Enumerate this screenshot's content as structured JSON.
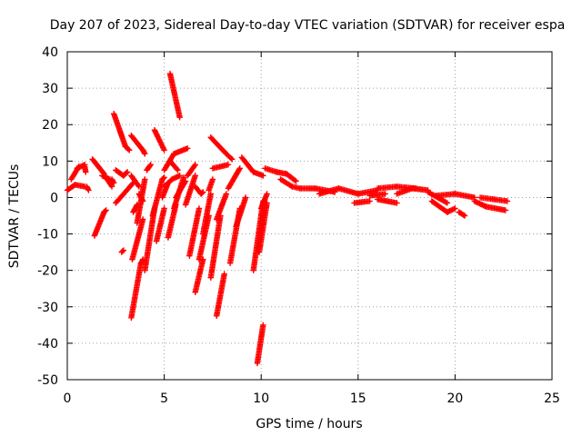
{
  "chart_data": {
    "type": "scatter",
    "title": "Day 207 of 2023, Sidereal Day-to-day VTEC variation (SDTVAR) for receiver espa",
    "xlabel": "GPS time / hours",
    "ylabel": "SDTVAR / TECUs",
    "xlim": [
      0,
      25
    ],
    "ylim": [
      -50,
      40
    ],
    "xticks": [
      0,
      5,
      10,
      15,
      20,
      25
    ],
    "yticks": [
      -50,
      -40,
      -30,
      -20,
      -10,
      0,
      10,
      20,
      30,
      40
    ],
    "xtick_labels": [
      "0",
      "5",
      "10",
      "15",
      "20",
      "25"
    ],
    "ytick_labels": [
      "-50",
      "-40",
      "-30",
      "-20",
      "-10",
      "0",
      "10",
      "20",
      "30",
      "40"
    ],
    "grid": true,
    "marker": "plus",
    "color": "#ff0000",
    "series_segments": [
      {
        "x0": 0.0,
        "y0": 2.0,
        "x1": 0.4,
        "y1": 3.5
      },
      {
        "x0": 0.4,
        "y0": 3.5,
        "x1": 0.9,
        "y1": 3.0
      },
      {
        "x0": 0.2,
        "y0": 5.0,
        "x1": 0.6,
        "y1": 8.5
      },
      {
        "x0": 0.5,
        "y0": 8.0,
        "x1": 0.9,
        "y1": 9.0
      },
      {
        "x0": 0.9,
        "y0": 8.5,
        "x1": 0.95,
        "y1": 7.0
      },
      {
        "x0": 1.0,
        "y0": 3.0,
        "x1": 1.1,
        "y1": 2.0
      },
      {
        "x0": 1.3,
        "y0": 10.5,
        "x1": 1.9,
        "y1": 6.5
      },
      {
        "x0": 1.8,
        "y0": 6.0,
        "x1": 2.2,
        "y1": 5.0
      },
      {
        "x0": 2.3,
        "y0": 5.0,
        "x1": 2.4,
        "y1": 4.0
      },
      {
        "x0": 1.4,
        "y0": -10.5,
        "x1": 1.9,
        "y1": -4.0
      },
      {
        "x0": 1.9,
        "y0": -4.0,
        "x1": 2.0,
        "y1": -3.5
      },
      {
        "x0": 2.0,
        "y0": 5.5,
        "x1": 2.3,
        "y1": 3.0
      },
      {
        "x0": 2.4,
        "y0": 23.0,
        "x1": 3.0,
        "y1": 14.0
      },
      {
        "x0": 3.0,
        "y0": 14.0,
        "x1": 3.2,
        "y1": 13.0
      },
      {
        "x0": 2.5,
        "y0": 7.5,
        "x1": 2.9,
        "y1": 6.0
      },
      {
        "x0": 2.9,
        "y0": 6.0,
        "x1": 3.1,
        "y1": 7.0
      },
      {
        "x0": 2.5,
        "y0": -1.5,
        "x1": 3.4,
        "y1": 4.0
      },
      {
        "x0": 3.3,
        "y0": 6.0,
        "x1": 3.7,
        "y1": 3.0
      },
      {
        "x0": 3.7,
        "y0": 1.0,
        "x1": 3.9,
        "y1": -1.0
      },
      {
        "x0": 3.3,
        "y0": 17.0,
        "x1": 3.9,
        "y1": 13.0
      },
      {
        "x0": 3.9,
        "y0": 13.0,
        "x1": 4.0,
        "y1": 12.0
      },
      {
        "x0": 2.8,
        "y0": -15.0,
        "x1": 2.9,
        "y1": -14.5
      },
      {
        "x0": 3.3,
        "y0": -33.0,
        "x1": 3.8,
        "y1": -18.0
      },
      {
        "x0": 3.8,
        "y0": -18.0,
        "x1": 3.9,
        "y1": -17.0
      },
      {
        "x0": 3.35,
        "y0": -17.0,
        "x1": 3.9,
        "y1": -6.0
      },
      {
        "x0": 3.6,
        "y0": -7.0,
        "x1": 4.0,
        "y1": 5.0
      },
      {
        "x0": 3.4,
        "y0": -4.0,
        "x1": 3.6,
        "y1": -2.0
      },
      {
        "x0": 4.1,
        "y0": 7.5,
        "x1": 4.3,
        "y1": 9.0
      },
      {
        "x0": 4.5,
        "y0": 18.5,
        "x1": 5.0,
        "y1": 13.0
      },
      {
        "x0": 4.0,
        "y0": -20.0,
        "x1": 4.5,
        "y1": -3.0
      },
      {
        "x0": 4.4,
        "y0": -5.0,
        "x1": 4.9,
        "y1": 5.0
      },
      {
        "x0": 4.9,
        "y0": 5.0,
        "x1": 5.0,
        "y1": 5.5
      },
      {
        "x0": 4.6,
        "y0": -12.0,
        "x1": 5.0,
        "y1": -3.0
      },
      {
        "x0": 4.9,
        "y0": 0.0,
        "x1": 5.2,
        "y1": 4.0
      },
      {
        "x0": 5.0,
        "y0": 7.5,
        "x1": 5.5,
        "y1": 12.0
      },
      {
        "x0": 5.5,
        "y0": 12.0,
        "x1": 6.2,
        "y1": 13.5
      },
      {
        "x0": 5.3,
        "y0": 34.0,
        "x1": 5.8,
        "y1": 22.0
      },
      {
        "x0": 5.3,
        "y0": 10.0,
        "x1": 5.7,
        "y1": 7.5
      },
      {
        "x0": 5.0,
        "y0": 3.0,
        "x1": 5.4,
        "y1": 5.0
      },
      {
        "x0": 5.4,
        "y0": 5.0,
        "x1": 5.8,
        "y1": 6.0
      },
      {
        "x0": 5.2,
        "y0": -11.0,
        "x1": 5.6,
        "y1": -2.0
      },
      {
        "x0": 5.5,
        "y0": -3.0,
        "x1": 6.0,
        "y1": 5.5
      },
      {
        "x0": 5.6,
        "y0": 0.0,
        "x1": 6.1,
        "y1": 4.5
      },
      {
        "x0": 6.2,
        "y0": 6.0,
        "x1": 6.6,
        "y1": 9.0
      },
      {
        "x0": 6.1,
        "y0": -2.0,
        "x1": 6.6,
        "y1": 6.0
      },
      {
        "x0": 6.6,
        "y0": 3.0,
        "x1": 6.9,
        "y1": 1.0
      },
      {
        "x0": 6.9,
        "y0": 1.0,
        "x1": 7.0,
        "y1": 1.5
      },
      {
        "x0": 6.3,
        "y0": -16.0,
        "x1": 6.8,
        "y1": -3.0
      },
      {
        "x0": 6.6,
        "y0": -26.0,
        "x1": 7.0,
        "y1": -17.0
      },
      {
        "x0": 6.8,
        "y0": -17.0,
        "x1": 7.3,
        "y1": -5.0
      },
      {
        "x0": 7.0,
        "y0": -10.0,
        "x1": 7.4,
        "y1": 1.0
      },
      {
        "x0": 7.3,
        "y0": 2.0,
        "x1": 7.5,
        "y1": 5.0
      },
      {
        "x0": 7.4,
        "y0": 16.5,
        "x1": 8.2,
        "y1": 12.0
      },
      {
        "x0": 8.2,
        "y0": 12.0,
        "x1": 8.5,
        "y1": 10.5
      },
      {
        "x0": 7.5,
        "y0": 8.0,
        "x1": 8.3,
        "y1": 9.0
      },
      {
        "x0": 7.4,
        "y0": -22.0,
        "x1": 7.9,
        "y1": -5.0
      },
      {
        "x0": 7.7,
        "y0": -32.5,
        "x1": 8.1,
        "y1": -21.0
      },
      {
        "x0": 7.7,
        "y0": -6.0,
        "x1": 8.2,
        "y1": 1.0
      },
      {
        "x0": 8.3,
        "y0": 2.5,
        "x1": 8.9,
        "y1": 8.0
      },
      {
        "x0": 8.4,
        "y0": -18.0,
        "x1": 8.9,
        "y1": -3.0
      },
      {
        "x0": 8.7,
        "y0": -8.0,
        "x1": 9.2,
        "y1": 0.0
      },
      {
        "x0": 9.0,
        "y0": 11.0,
        "x1": 9.6,
        "y1": 7.0
      },
      {
        "x0": 9.6,
        "y0": 7.0,
        "x1": 10.1,
        "y1": 6.0
      },
      {
        "x0": 9.6,
        "y0": -20.0,
        "x1": 10.1,
        "y1": -1.0
      },
      {
        "x0": 9.9,
        "y0": -15.0,
        "x1": 10.3,
        "y1": -1.5
      },
      {
        "x0": 10.0,
        "y0": -3.0,
        "x1": 10.3,
        "y1": 1.0
      },
      {
        "x0": 9.8,
        "y0": -45.5,
        "x1": 10.1,
        "y1": -35.0
      },
      {
        "x0": 10.2,
        "y0": 8.0,
        "x1": 10.8,
        "y1": 7.0
      },
      {
        "x0": 10.8,
        "y0": 7.0,
        "x1": 11.3,
        "y1": 6.5
      },
      {
        "x0": 11.3,
        "y0": 6.5,
        "x1": 11.8,
        "y1": 4.5
      },
      {
        "x0": 11.0,
        "y0": 5.0,
        "x1": 11.6,
        "y1": 3.0
      },
      {
        "x0": 11.6,
        "y0": 3.0,
        "x1": 12.0,
        "y1": 2.5
      },
      {
        "x0": 12.0,
        "y0": 2.5,
        "x1": 12.8,
        "y1": 2.5
      },
      {
        "x0": 12.8,
        "y0": 2.5,
        "x1": 13.8,
        "y1": 1.5
      },
      {
        "x0": 13.0,
        "y0": 1.0,
        "x1": 14.0,
        "y1": 2.5
      },
      {
        "x0": 14.0,
        "y0": 2.5,
        "x1": 15.0,
        "y1": 1.0
      },
      {
        "x0": 15.0,
        "y0": 1.0,
        "x1": 16.0,
        "y1": 2.0
      },
      {
        "x0": 14.8,
        "y0": -1.5,
        "x1": 15.6,
        "y1": -1.0
      },
      {
        "x0": 15.6,
        "y0": 0.5,
        "x1": 16.4,
        "y1": 1.0
      },
      {
        "x0": 16.0,
        "y0": 2.5,
        "x1": 17.0,
        "y1": 3.0
      },
      {
        "x0": 16.0,
        "y0": -0.5,
        "x1": 17.0,
        "y1": -1.5
      },
      {
        "x0": 17.0,
        "y0": 3.0,
        "x1": 18.0,
        "y1": 2.5
      },
      {
        "x0": 17.0,
        "y0": 1.0,
        "x1": 17.8,
        "y1": 2.5
      },
      {
        "x0": 17.8,
        "y0": 2.5,
        "x1": 18.6,
        "y1": 2.0
      },
      {
        "x0": 18.6,
        "y0": 1.5,
        "x1": 19.6,
        "y1": -1.5
      },
      {
        "x0": 18.8,
        "y0": -1.0,
        "x1": 19.6,
        "y1": -4.0
      },
      {
        "x0": 19.6,
        "y0": -4.0,
        "x1": 20.0,
        "y1": -3.0
      },
      {
        "x0": 19.0,
        "y0": 0.5,
        "x1": 20.0,
        "y1": 1.0
      },
      {
        "x0": 20.0,
        "y0": 1.0,
        "x1": 21.0,
        "y1": 0.0
      },
      {
        "x0": 20.2,
        "y0": -4.0,
        "x1": 20.5,
        "y1": -5.0
      },
      {
        "x0": 21.0,
        "y0": -1.0,
        "x1": 21.6,
        "y1": -2.5
      },
      {
        "x0": 21.6,
        "y0": -2.5,
        "x1": 22.6,
        "y1": -3.5
      },
      {
        "x0": 21.3,
        "y0": 0.0,
        "x1": 22.0,
        "y1": -0.5
      },
      {
        "x0": 22.0,
        "y0": -0.5,
        "x1": 22.7,
        "y1": -1.0
      }
    ]
  }
}
